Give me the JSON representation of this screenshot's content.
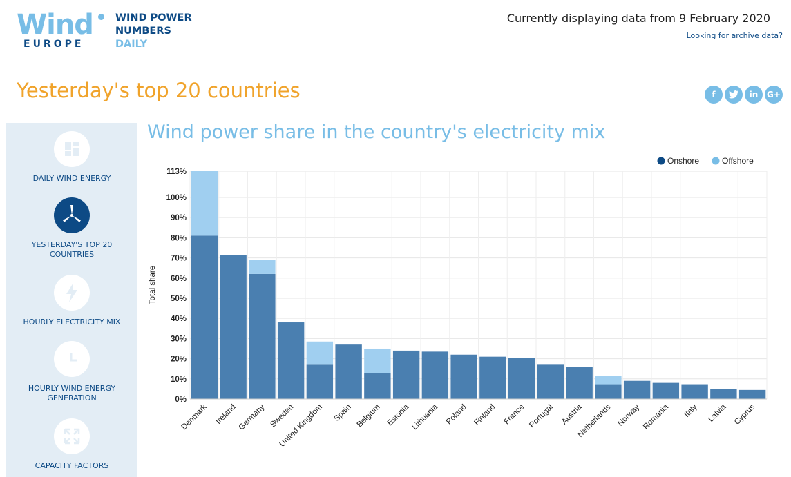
{
  "header": {
    "logo_wind": "Wind",
    "logo_europe": "EUROPE",
    "logo_line1": "WIND POWER",
    "logo_line2": "NUMBERS",
    "logo_line3": "DAILY",
    "date_text": "Currently displaying data from 9 February 2020",
    "archive_link": "Looking for archive data?"
  },
  "page_title": "Yesterday's top 20 countries",
  "social": [
    "f",
    "t",
    "in",
    "G+"
  ],
  "sidebar": {
    "items": [
      {
        "label_line1": "DAILY WIND ENERGY",
        "label_line2": "",
        "icon": "dashboard-icon",
        "active": false
      },
      {
        "label_line1": "YESTERDAY'S TOP 20",
        "label_line2": "COUNTRIES",
        "icon": "wind-turbine-icon",
        "active": true
      },
      {
        "label_line1": "HOURLY ELECTRICITY MIX",
        "label_line2": "",
        "icon": "lightning-icon",
        "active": false
      },
      {
        "label_line1": "HOURLY WIND ENERGY",
        "label_line2": "GENERATION",
        "icon": "clock-icon",
        "active": false
      },
      {
        "label_line1": "CAPACITY FACTORS",
        "label_line2": "",
        "icon": "expand-icon",
        "active": false
      }
    ]
  },
  "chart_data": {
    "type": "bar",
    "stacked": true,
    "title": "Wind power share in the country's electricity mix",
    "ylabel": "Total share",
    "xlabel": "",
    "ylim": [
      0,
      113
    ],
    "yticks": [
      "0%",
      "10%",
      "20%",
      "30%",
      "40%",
      "50%",
      "60%",
      "70%",
      "80%",
      "90%",
      "100%",
      "113%"
    ],
    "categories": [
      "Denmark",
      "Ireland",
      "Germany",
      "Sweden",
      "United Kingdom",
      "Spain",
      "Belgium",
      "Estonia",
      "Lithuania",
      "Poland",
      "Finland",
      "France",
      "Portugal",
      "Austria",
      "Netherlands",
      "Norway",
      "Romania",
      "Italy",
      "Latvia",
      "Cyprus"
    ],
    "series": [
      {
        "name": "Onshore",
        "color": "#0d4a85",
        "values": [
          81,
          71.5,
          62,
          38,
          17,
          27,
          13,
          24,
          23.5,
          22,
          21,
          20.5,
          17,
          16,
          7,
          9,
          8,
          7,
          5,
          4.5
        ]
      },
      {
        "name": "Offshore",
        "color": "#78bde6",
        "values": [
          32,
          0,
          7,
          0,
          11.5,
          0,
          12,
          0,
          0,
          0,
          0,
          0,
          0,
          0,
          4.5,
          0,
          0,
          0,
          0,
          0
        ]
      }
    ],
    "legend_position": "top-right",
    "grid": true
  },
  "colors": {
    "onshore_bar": "#4a7fb0",
    "offshore_bar": "#a0cff0",
    "legend_onshore": "#0d4a85",
    "legend_offshore": "#78bde6",
    "accent_orange": "#f0a32b",
    "brand_dark": "#0d4a85",
    "brand_light": "#78bde6"
  }
}
